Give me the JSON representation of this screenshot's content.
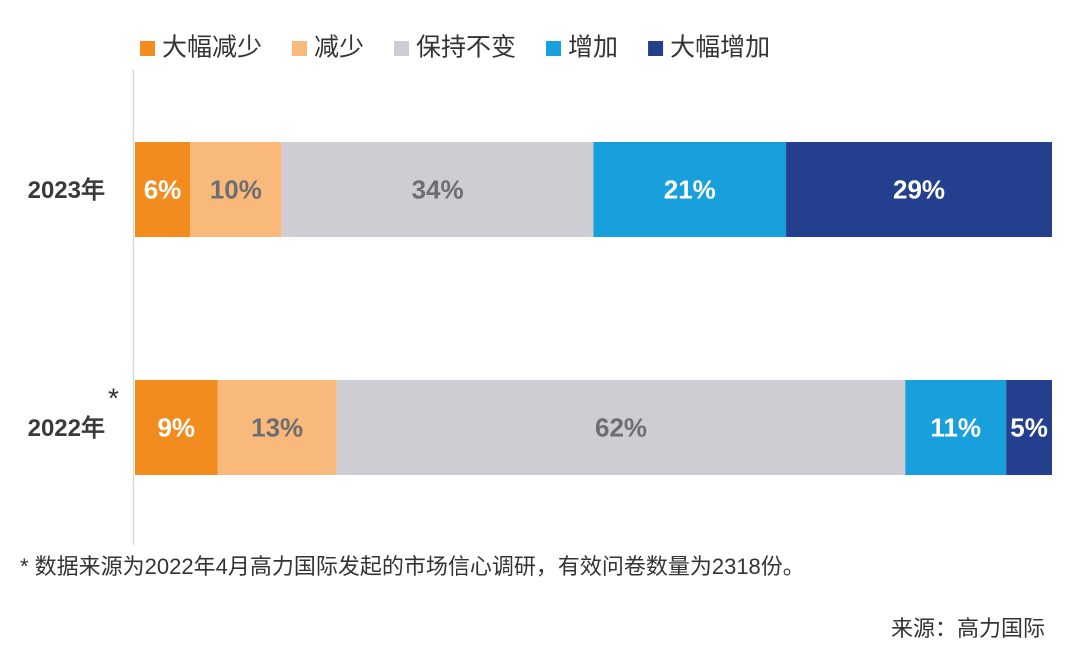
{
  "chart_data": {
    "type": "stacked-barh",
    "categories": [
      "2023年",
      "2022年"
    ],
    "annotation": "*",
    "xlim": [
      0,
      100
    ],
    "series": [
      {
        "name": "大幅减少",
        "color": "#f28c1f",
        "values": [
          6,
          9
        ],
        "value_labels": [
          "6%",
          "9%"
        ]
      },
      {
        "name": "减少",
        "color": "#f9b97a",
        "values": [
          10,
          13
        ],
        "value_labels": [
          "10%",
          "13%"
        ]
      },
      {
        "name": "保持不变",
        "color": "#cdcdd3",
        "values": [
          34,
          62
        ],
        "value_labels": [
          "34%",
          "62%"
        ]
      },
      {
        "name": "增加",
        "color": "#17a0db",
        "values": [
          21,
          11
        ],
        "value_labels": [
          "21%",
          "11%"
        ]
      },
      {
        "name": "大幅增加",
        "color": "#253f8f",
        "values": [
          29,
          5
        ],
        "value_labels": [
          "29%",
          "5%"
        ]
      }
    ],
    "footnote": "* 数据来源为2022年4月高力国际发起的市场信心调研，有效问卷数量为2318份。",
    "source": "来源：高力国际"
  }
}
